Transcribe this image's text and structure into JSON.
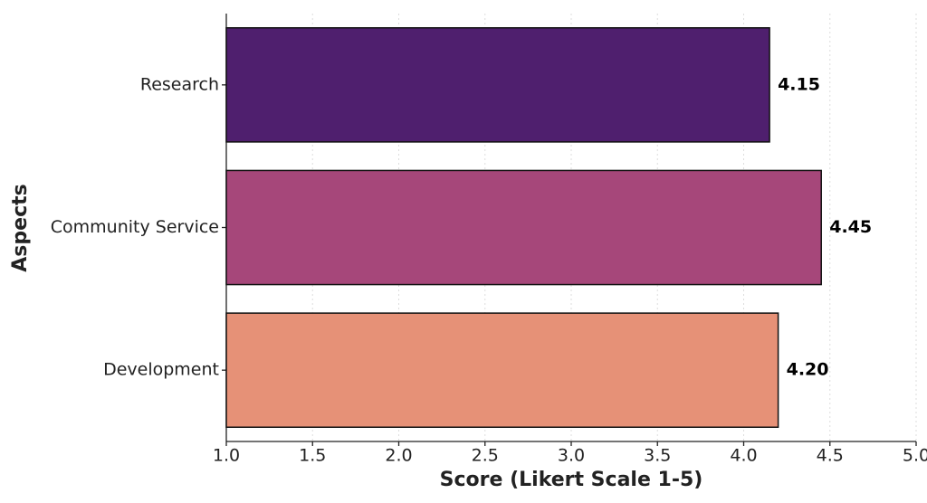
{
  "chart_data": {
    "type": "barh",
    "xlabel": "Score (Likert Scale 1-5)",
    "ylabel": "Aspects",
    "categories": [
      "Research",
      "Community Service",
      "Development"
    ],
    "values": [
      4.15,
      4.45,
      4.2
    ],
    "value_labels": [
      "4.15",
      "4.45",
      "4.20"
    ],
    "colors": [
      "#4f1f6e",
      "#a6477a",
      "#e69177"
    ],
    "xlim": [
      1,
      5
    ],
    "xticks": [
      {
        "value": 1,
        "label": "1.0"
      },
      1.5,
      {
        "value": 2,
        "label": "2.0"
      },
      2.5,
      {
        "value": 3,
        "label": "3.0"
      },
      3.5,
      {
        "value": 4,
        "label": "4.0"
      },
      4.5,
      {
        "value": 5,
        "label": "5.0"
      }
    ],
    "grid": true
  }
}
